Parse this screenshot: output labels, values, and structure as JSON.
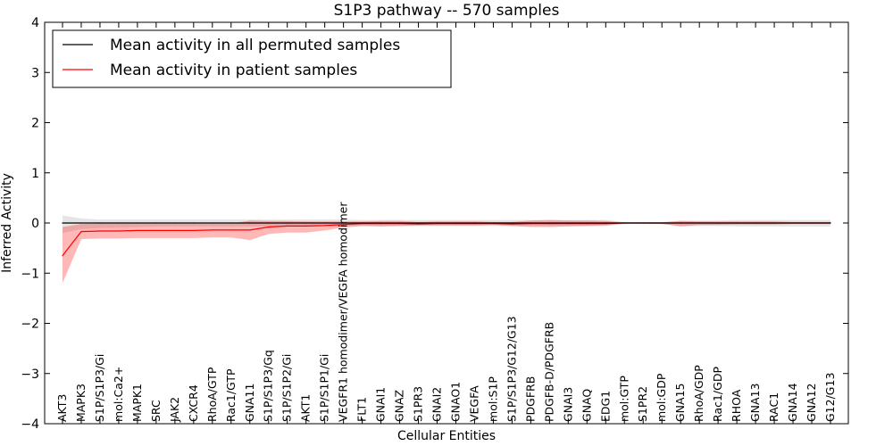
{
  "chart_data": {
    "type": "line",
    "title": "S1P3 pathway -- 570 samples",
    "xlabel": "Cellular Entities",
    "ylabel": "Inferred Activity",
    "ylim": [
      -4,
      4
    ],
    "yticks": [
      -4,
      -3,
      -2,
      -1,
      0,
      1,
      2,
      3,
      4
    ],
    "legend_position": "top-left",
    "categories": [
      "AKT3",
      "MAPK3",
      "S1P/S1P3/Gi",
      "mol:Ca2+",
      "MAPK1",
      "SRC",
      "JAK2",
      "CXCR4",
      "RhoA/GTP",
      "Rac1/GTP",
      "GNA11",
      "S1P/S1P3/Gq",
      "S1P/S1P2/Gi",
      "AKT1",
      "S1P/S1P1/Gi",
      "VEGFR1 homodimer/VEGFA homodimer",
      "FLT1",
      "GNAI1",
      "GNAZ",
      "S1PR3",
      "GNAI2",
      "GNAO1",
      "VEGFA",
      "mol:S1P",
      "S1P/S1P3/G12/G13",
      "PDGFRB",
      "PDGFB-D/PDGFRB",
      "GNAI3",
      "GNAQ",
      "EDG1",
      "mol:GTP",
      "S1PR2",
      "mol:GDP",
      "GNA15",
      "RhoA/GDP",
      "Rac1/GDP",
      "RHOA",
      "GNA13",
      "RAC1",
      "GNA14",
      "GNA12",
      "G12/G13"
    ],
    "series": [
      {
        "name": "Mean activity in all permuted samples",
        "color": "#000000",
        "band_color": "#888888",
        "values": [
          0,
          0,
          0,
          0,
          0,
          0,
          0,
          0,
          0,
          0,
          0,
          0,
          0,
          0,
          0,
          0,
          0,
          0,
          0,
          0,
          0,
          0,
          0,
          0,
          0,
          0,
          0,
          0,
          0,
          0,
          0,
          0,
          0,
          0,
          0,
          0,
          0,
          0,
          0,
          0,
          0,
          0
        ],
        "lower": [
          -0.2,
          -0.12,
          -0.1,
          -0.09,
          -0.08,
          -0.07,
          -0.07,
          -0.07,
          -0.07,
          -0.07,
          -0.07,
          -0.07,
          -0.07,
          -0.07,
          -0.07,
          -0.07,
          -0.06,
          -0.06,
          -0.06,
          -0.06,
          -0.06,
          -0.06,
          -0.06,
          -0.06,
          -0.06,
          -0.06,
          -0.06,
          -0.06,
          -0.06,
          -0.06,
          -0.02,
          -0.02,
          -0.02,
          -0.06,
          -0.06,
          -0.06,
          -0.07,
          -0.07,
          -0.07,
          -0.07,
          -0.07,
          -0.07
        ],
        "upper": [
          0.15,
          0.09,
          0.07,
          0.07,
          0.07,
          0.07,
          0.07,
          0.07,
          0.07,
          0.07,
          0.07,
          0.07,
          0.07,
          0.07,
          0.07,
          0.07,
          0.06,
          0.06,
          0.06,
          0.06,
          0.06,
          0.06,
          0.06,
          0.06,
          0.06,
          0.06,
          0.06,
          0.06,
          0.06,
          0.06,
          0.02,
          0.02,
          0.02,
          0.05,
          0.05,
          0.05,
          0.06,
          0.06,
          0.06,
          0.06,
          0.06,
          0.06
        ]
      },
      {
        "name": "Mean activity in patient samples",
        "color": "#ff0000",
        "band_color": "#ff0000",
        "values": [
          -0.65,
          -0.17,
          -0.16,
          -0.16,
          -0.15,
          -0.15,
          -0.15,
          -0.15,
          -0.14,
          -0.14,
          -0.14,
          -0.08,
          -0.06,
          -0.06,
          -0.05,
          -0.03,
          -0.01,
          -0.01,
          -0.01,
          -0.02,
          -0.01,
          -0.01,
          -0.01,
          -0.01,
          -0.02,
          -0.01,
          -0.01,
          -0.01,
          -0.01,
          -0.01,
          0,
          0,
          0,
          0,
          0,
          0,
          0,
          0,
          0,
          0,
          0,
          0
        ],
        "lower": [
          -1.2,
          -0.32,
          -0.31,
          -0.31,
          -0.3,
          -0.3,
          -0.3,
          -0.3,
          -0.29,
          -0.29,
          -0.34,
          -0.22,
          -0.19,
          -0.19,
          -0.15,
          -0.09,
          -0.06,
          -0.07,
          -0.06,
          -0.05,
          -0.05,
          -0.05,
          -0.05,
          -0.04,
          -0.06,
          -0.08,
          -0.08,
          -0.07,
          -0.06,
          -0.05,
          -0.01,
          -0.01,
          -0.02,
          -0.07,
          -0.04,
          -0.04,
          -0.03,
          -0.03,
          -0.03,
          -0.02,
          -0.02,
          -0.02
        ],
        "upper": [
          -0.08,
          -0.02,
          -0.01,
          -0.01,
          -0.01,
          -0.01,
          -0.01,
          -0.01,
          -0.01,
          -0.01,
          0.05,
          0.04,
          0.04,
          0.03,
          0.03,
          0.03,
          0.03,
          0.04,
          0.04,
          0.02,
          0.03,
          0.03,
          0.03,
          0.02,
          0.02,
          0.05,
          0.06,
          0.05,
          0.05,
          0.04,
          0.01,
          0.01,
          0.01,
          0.04,
          0.03,
          0.03,
          0.03,
          0.03,
          0.03,
          0.02,
          0.02,
          0.02
        ]
      }
    ]
  }
}
